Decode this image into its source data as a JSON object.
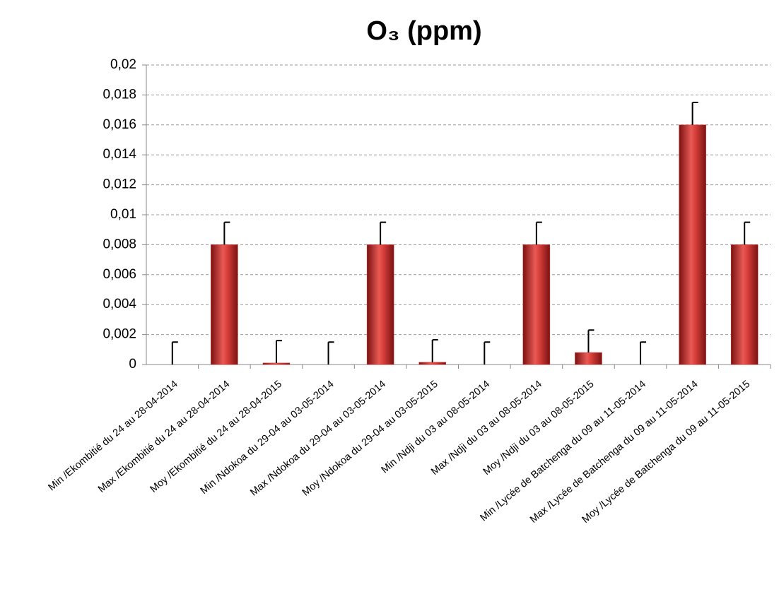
{
  "chart_data": {
    "type": "bar",
    "title": "O₃  (ppm)",
    "categories": [
      "Min /Ekombitié du 24 au 28-04-2014",
      "Max /Ekombitié du 24 au 28-04-2014",
      "Moy /Ekombitié du 24 au 28-04-2015",
      "Min /Ndokoa du 29-04 au 03-05-2014",
      "Max /Ndokoa du 29-04 au 03-05-2014",
      "Moy /Ndokoa du 29-04 au 03-05-2015",
      "Min /Ndji  du 03 au 08-05-2014",
      "Max /Ndji  du 03 au 08-05-2014",
      "Moy /Ndji  du 03 au 08-05-2015",
      "Min /Lycée de Batchenga du 09 au 11-05-2014",
      "Max /Lycée de Batchenga du 09 au 11-05-2014",
      "Moy /Lycée de Batchenga du 09 au 11-05-2015"
    ],
    "values": [
      0,
      0.008,
      0.0001,
      0,
      0.008,
      0.00015,
      0,
      0.008,
      0.0008,
      0,
      0.016,
      0.008
    ],
    "errors": [
      0.0015,
      0.0015,
      0.0015,
      0.0015,
      0.0015,
      0.0015,
      0.0015,
      0.0015,
      0.0015,
      0.0015,
      0.0015,
      0.0015
    ],
    "color": "#c8302e",
    "ylim": [
      0,
      0.02
    ],
    "yticks": [
      0,
      {
        "value": 0.002,
        "label": "0,002"
      },
      {
        "value": 0.004,
        "label": "0,004"
      },
      {
        "value": 0.006,
        "label": "0,006"
      },
      {
        "value": 0.008,
        "label": "0,008"
      },
      {
        "value": 0.01,
        "label": "0,01"
      },
      {
        "value": 0.012,
        "label": "0,012"
      },
      {
        "value": 0.014,
        "label": "0,014"
      },
      {
        "value": 0.016,
        "label": "0,016"
      },
      {
        "value": 0.018,
        "label": "0,018"
      },
      {
        "value": 0.02,
        "label": "0,02"
      }
    ],
    "grid": true
  }
}
